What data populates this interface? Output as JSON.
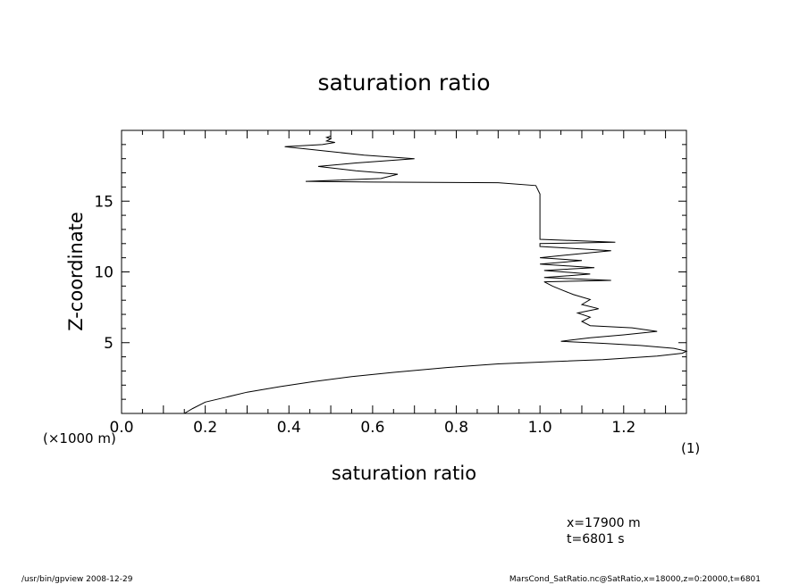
{
  "chart_data": {
    "type": "line",
    "title": "saturation ratio",
    "xlabel": "saturation ratio",
    "ylabel": "Z-coordinate",
    "xunit": "(1)",
    "yunit": "(×1000 m)",
    "xlim": [
      0,
      1.35
    ],
    "ylim": [
      0,
      20
    ],
    "xticks": [
      0.0,
      0.2,
      0.4,
      0.6,
      0.8,
      1.0,
      1.2
    ],
    "xtick_labels": [
      "0.0",
      "0.2",
      "0.4",
      "0.6",
      "0.8",
      "1.0",
      "1.2"
    ],
    "yticks": [
      5,
      10,
      15
    ],
    "ytick_labels": [
      "5",
      "10",
      "15"
    ],
    "grid": false,
    "series": [
      {
        "name": "",
        "points": [
          [
            0.15,
            0.0
          ],
          [
            0.17,
            0.35
          ],
          [
            0.2,
            0.8
          ],
          [
            0.25,
            1.15
          ],
          [
            0.3,
            1.5
          ],
          [
            0.38,
            1.9
          ],
          [
            0.46,
            2.25
          ],
          [
            0.55,
            2.6
          ],
          [
            0.65,
            2.9
          ],
          [
            0.78,
            3.25
          ],
          [
            0.9,
            3.5
          ],
          [
            1.02,
            3.65
          ],
          [
            1.15,
            3.8
          ],
          [
            1.28,
            4.05
          ],
          [
            1.34,
            4.25
          ],
          [
            1.35,
            4.4
          ],
          [
            1.32,
            4.6
          ],
          [
            1.24,
            4.8
          ],
          [
            1.15,
            4.95
          ],
          [
            1.05,
            5.1
          ],
          [
            1.12,
            5.35
          ],
          [
            1.2,
            5.55
          ],
          [
            1.28,
            5.8
          ],
          [
            1.22,
            6.05
          ],
          [
            1.12,
            6.2
          ],
          [
            1.1,
            6.5
          ],
          [
            1.12,
            6.8
          ],
          [
            1.09,
            7.1
          ],
          [
            1.14,
            7.4
          ],
          [
            1.1,
            7.7
          ],
          [
            1.12,
            8.05
          ],
          [
            1.08,
            8.4
          ],
          [
            1.05,
            8.75
          ],
          [
            1.03,
            9.0
          ],
          [
            1.01,
            9.3
          ],
          [
            1.17,
            9.4
          ],
          [
            1.01,
            9.6
          ],
          [
            1.12,
            9.85
          ],
          [
            1.01,
            10.1
          ],
          [
            1.13,
            10.3
          ],
          [
            1.0,
            10.55
          ],
          [
            1.1,
            10.8
          ],
          [
            1.0,
            11.0
          ],
          [
            1.17,
            11.5
          ],
          [
            1.0,
            11.8
          ],
          [
            1.0,
            12.0
          ],
          [
            1.18,
            12.1
          ],
          [
            1.0,
            12.3
          ],
          [
            1.0,
            14.0
          ],
          [
            1.0,
            15.5
          ],
          [
            0.99,
            16.1
          ],
          [
            0.9,
            16.3
          ],
          [
            0.6,
            16.35
          ],
          [
            0.44,
            16.4
          ],
          [
            0.62,
            16.6
          ],
          [
            0.66,
            16.9
          ],
          [
            0.56,
            17.15
          ],
          [
            0.47,
            17.45
          ],
          [
            0.56,
            17.7
          ],
          [
            0.7,
            18.0
          ],
          [
            0.58,
            18.25
          ],
          [
            0.5,
            18.5
          ],
          [
            0.39,
            18.85
          ],
          [
            0.48,
            19.0
          ],
          [
            0.51,
            19.15
          ],
          [
            0.49,
            19.25
          ],
          [
            0.5,
            19.4
          ],
          [
            0.49,
            19.5
          ],
          [
            0.5,
            19.6
          ]
        ]
      }
    ]
  },
  "annotations": {
    "line1": "x=17900  m",
    "line2": "t=6801  s"
  },
  "footer": {
    "left": "/usr/bin/gpview   2008-12-29",
    "right": "MarsCond_SatRatio.nc@SatRatio,x=18000,z=0:20000,t=6801"
  }
}
